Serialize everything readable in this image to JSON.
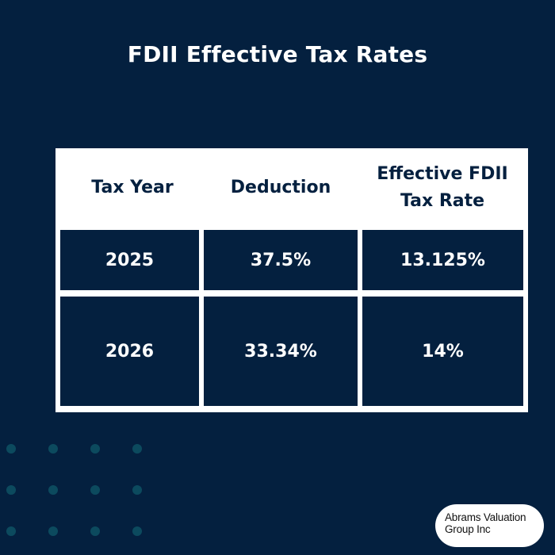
{
  "title": "FDII Effective Tax Rates",
  "table": {
    "headers": {
      "tax_year": "Tax Year",
      "deduction": "Deduction",
      "rate_line1": "Effective FDII",
      "rate_line2": "Tax Rate"
    },
    "rows": [
      {
        "year": "2025",
        "deduction": "37.5%",
        "rate": "13.125%"
      },
      {
        "year": "2026",
        "deduction": "33.34%",
        "rate": "14%"
      }
    ]
  },
  "logo": {
    "line1": "Abrams Valuation",
    "line2": "Group Inc"
  },
  "colors": {
    "background": "#04203f",
    "header_background": "#ffffff",
    "dots": "#0c4a5e"
  }
}
